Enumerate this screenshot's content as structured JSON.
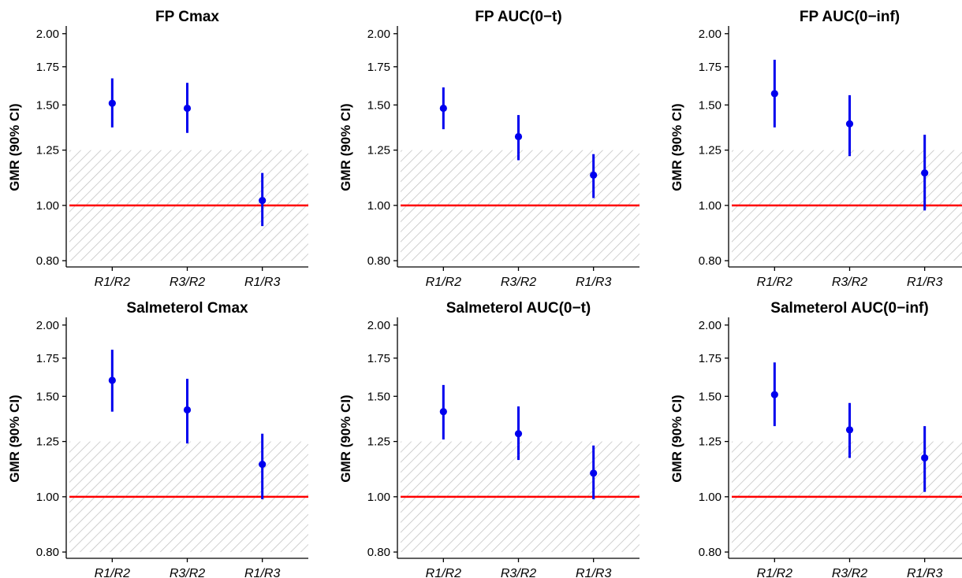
{
  "chart_data": [
    {
      "type": "errorbar",
      "title": "FP  Cmax",
      "ylabel": "GMR (90% CI)",
      "categories": [
        "R1/R2",
        "R3/R2",
        "R1/R3"
      ],
      "estimate": [
        1.51,
        1.48,
        1.02
      ],
      "lower": [
        1.37,
        1.34,
        0.92
      ],
      "upper": [
        1.67,
        1.64,
        1.14
      ]
    },
    {
      "type": "errorbar",
      "title": "FP  AUC(0−t)",
      "ylabel": "GMR (90% CI)",
      "categories": [
        "R1/R2",
        "R3/R2",
        "R1/R3"
      ],
      "estimate": [
        1.48,
        1.32,
        1.13
      ],
      "lower": [
        1.36,
        1.2,
        1.03
      ],
      "upper": [
        1.61,
        1.44,
        1.23
      ]
    },
    {
      "type": "errorbar",
      "title": "FP  AUC(0−inf)",
      "ylabel": "GMR (90% CI)",
      "categories": [
        "R1/R2",
        "R3/R2",
        "R1/R3"
      ],
      "estimate": [
        1.57,
        1.39,
        1.14
      ],
      "lower": [
        1.37,
        1.22,
        0.98
      ],
      "upper": [
        1.8,
        1.56,
        1.33
      ]
    },
    {
      "type": "errorbar",
      "title": "Salmeterol  Cmax",
      "ylabel": "GMR (90% CI)",
      "categories": [
        "R1/R2",
        "R3/R2",
        "R1/R3"
      ],
      "estimate": [
        1.6,
        1.42,
        1.14
      ],
      "lower": [
        1.41,
        1.24,
        0.99
      ],
      "upper": [
        1.81,
        1.61,
        1.29
      ]
    },
    {
      "type": "errorbar",
      "title": "Salmeterol  AUC(0−t)",
      "ylabel": "GMR (90% CI)",
      "categories": [
        "R1/R2",
        "R3/R2",
        "R1/R3"
      ],
      "estimate": [
        1.41,
        1.29,
        1.1
      ],
      "lower": [
        1.26,
        1.16,
        0.99
      ],
      "upper": [
        1.57,
        1.44,
        1.23
      ]
    },
    {
      "type": "errorbar",
      "title": "Salmeterol  AUC(0−inf)",
      "ylabel": "GMR (90% CI)",
      "categories": [
        "R1/R2",
        "R3/R2",
        "R1/R3"
      ],
      "estimate": [
        1.51,
        1.31,
        1.17
      ],
      "lower": [
        1.33,
        1.17,
        1.02
      ],
      "upper": [
        1.72,
        1.46,
        1.33
      ]
    }
  ],
  "shared_axis": {
    "scale": "log",
    "ylim": [
      0.78,
      2.05
    ],
    "yticks": [
      0.8,
      1.0,
      1.25,
      1.5,
      1.75,
      2.0
    ],
    "ytick_labels": [
      "0.80",
      "1.00",
      "1.25",
      "1.50",
      "1.75",
      "2.00"
    ],
    "reference_line": 1.0,
    "equivalence_band": [
      0.8,
      1.25
    ]
  },
  "colors": {
    "point": "#0000ee",
    "reference_line": "#ff0000",
    "band_hatch": "#bdbdbd"
  }
}
